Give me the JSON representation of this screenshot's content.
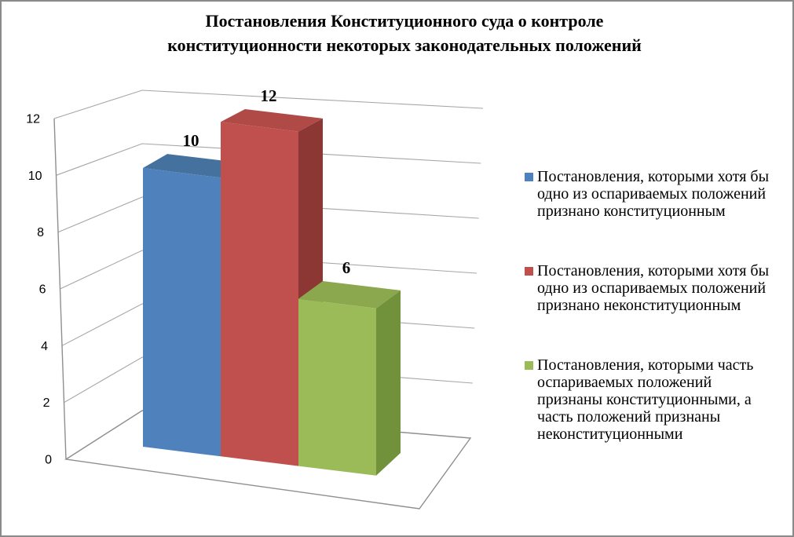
{
  "title": "Постановления Конституционного суда о контроле\nконституционности некоторых законодательных положений",
  "chart_data": {
    "type": "bar",
    "projection": "3d",
    "title": "Постановления Конституционного суда о контроле конституционности некоторых законодательных положений",
    "series": [
      {
        "name": "Постановления, которыми хотя бы одно из оспариваемых положений признано конституционным",
        "value": 10,
        "color": "#4F81BD"
      },
      {
        "name": "Постановления, которыми хотя бы одно из оспариваемых положений признано неконституционным",
        "value": 12,
        "color": "#C0504D"
      },
      {
        "name": "Постановления, которыми часть оспариваемых положений признаны конституционными, а часть положений признаны неконституционными",
        "value": 6,
        "color": "#9BBB59"
      }
    ],
    "data_labels": [
      10,
      12,
      6
    ],
    "xlabel": "",
    "ylabel": "",
    "ylim": [
      0,
      12
    ],
    "yticks": [
      0,
      2,
      4,
      6,
      8,
      10,
      12
    ],
    "grid": true,
    "legend_position": "right"
  },
  "legend": {
    "items": [
      {
        "color": "#4F81BD",
        "lines": [
          "Постановления, которыми хотя бы",
          "одно из оспариваемых положений",
          "признано конституционным"
        ]
      },
      {
        "color": "#C0504D",
        "lines": [
          "Постановления, которыми хотя бы",
          "одно из оспариваемых положений",
          "признано неконституционным"
        ]
      },
      {
        "color": "#9BBB59",
        "lines": [
          "Постановления, которыми часть",
          "оспариваемых положений",
          "признаны конституционными, а",
          "часть положений признаны",
          "неконституционными"
        ]
      }
    ]
  },
  "colors": {
    "grid": "#A6A6A6",
    "frame": "#8F8F8F",
    "border": "#8A8A8A",
    "background": "#FFFFFF",
    "text": "#000000",
    "bar_shades": [
      {
        "front": "#4F81BD",
        "top": "#44719E",
        "side": "#365E90"
      },
      {
        "front": "#C0504D",
        "top": "#B04A47",
        "side": "#8C3734"
      },
      {
        "front": "#9BBB59",
        "top": "#8CA84F",
        "side": "#71923B"
      }
    ]
  }
}
